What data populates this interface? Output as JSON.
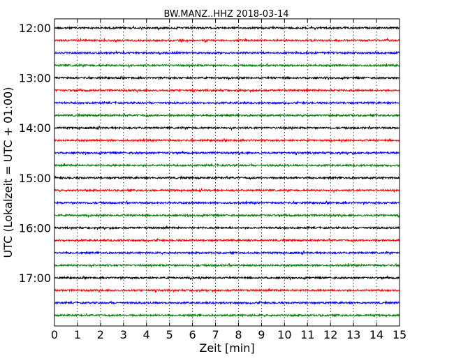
{
  "chart_data": {
    "type": "line",
    "title": "BW.MANZ..HHZ 2018-03-14",
    "xlabel": "Zeit  [min]",
    "ylabel": "UTC (Lokalzeit = UTC + 01:00)",
    "xlim": [
      0,
      15
    ],
    "x_ticks": [
      "0",
      "1",
      "2",
      "3",
      "4",
      "5",
      "6",
      "7",
      "8",
      "9",
      "10",
      "11",
      "12",
      "13",
      "14",
      "15"
    ],
    "y_tick_labels": [
      "12:00",
      "13:00",
      "14:00",
      "15:00",
      "16:00",
      "17:00"
    ],
    "grid": "vertical dotted",
    "trace_interval_minutes": 15,
    "colors": [
      "#000000",
      "#ff0000",
      "#0000ff",
      "#008000"
    ],
    "series": [
      {
        "start": "12:00",
        "color": "#000000"
      },
      {
        "start": "12:15",
        "color": "#ff0000"
      },
      {
        "start": "12:30",
        "color": "#0000ff"
      },
      {
        "start": "12:45",
        "color": "#008000"
      },
      {
        "start": "13:00",
        "color": "#000000"
      },
      {
        "start": "13:15",
        "color": "#ff0000"
      },
      {
        "start": "13:30",
        "color": "#0000ff"
      },
      {
        "start": "13:45",
        "color": "#008000"
      },
      {
        "start": "14:00",
        "color": "#000000"
      },
      {
        "start": "14:15",
        "color": "#ff0000"
      },
      {
        "start": "14:30",
        "color": "#0000ff"
      },
      {
        "start": "14:45",
        "color": "#008000"
      },
      {
        "start": "15:00",
        "color": "#000000"
      },
      {
        "start": "15:15",
        "color": "#ff0000"
      },
      {
        "start": "15:30",
        "color": "#0000ff"
      },
      {
        "start": "15:45",
        "color": "#008000"
      },
      {
        "start": "16:00",
        "color": "#000000"
      },
      {
        "start": "16:15",
        "color": "#ff0000"
      },
      {
        "start": "16:30",
        "color": "#0000ff"
      },
      {
        "start": "16:45",
        "color": "#008000"
      },
      {
        "start": "17:00",
        "color": "#000000"
      },
      {
        "start": "17:15",
        "color": "#ff0000"
      },
      {
        "start": "17:30",
        "color": "#0000ff"
      },
      {
        "start": "17:45",
        "color": "#008000"
      }
    ]
  }
}
